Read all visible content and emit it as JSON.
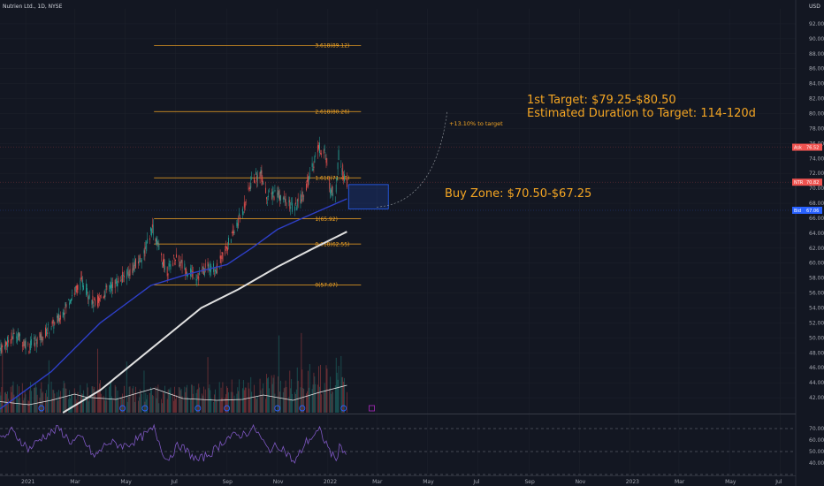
{
  "header": {
    "symbol": "Nutrien Ltd., 1D, NYSE",
    "currency": "USD"
  },
  "colors": {
    "bg": "#131722",
    "up": "#26a69a",
    "down": "#ef5350",
    "fib": "#f5a623",
    "ma_fast": "#2e3fc7",
    "ma_slow": "#e0e0e0",
    "ann": "#f5a623",
    "rsi": "#7e57c2"
  },
  "chart_data": {
    "type": "candlestick",
    "x_range": [
      "2020-12-01",
      "2023-07-20"
    ],
    "y_range": [
      40,
      94
    ],
    "y_ticks": [
      42,
      44,
      46,
      48,
      50,
      52,
      54,
      56,
      58,
      60,
      62,
      64,
      66,
      68,
      70,
      72,
      74,
      76,
      78,
      80,
      82,
      84,
      86,
      88,
      90,
      92
    ],
    "x_ticks": [
      {
        "date": "2021-01-01",
        "label": "2021"
      },
      {
        "date": "2021-03-01",
        "label": "Mar"
      },
      {
        "date": "2021-05-01",
        "label": "May"
      },
      {
        "date": "2021-07-01",
        "label": "Jul"
      },
      {
        "date": "2021-09-01",
        "label": "Sep"
      },
      {
        "date": "2021-11-01",
        "label": "Nov"
      },
      {
        "date": "2022-01-01",
        "label": "2022"
      },
      {
        "date": "2022-03-01",
        "label": "Mar"
      },
      {
        "date": "2022-05-01",
        "label": "May"
      },
      {
        "date": "2022-07-01",
        "label": "Jul"
      },
      {
        "date": "2022-09-01",
        "label": "Sep"
      },
      {
        "date": "2022-11-01",
        "label": "Nov"
      },
      {
        "date": "2023-01-01",
        "label": "2023"
      },
      {
        "date": "2023-03-01",
        "label": "Mar"
      },
      {
        "date": "2023-05-01",
        "label": "May"
      },
      {
        "date": "2023-07-01",
        "label": "Jul"
      }
    ],
    "price_path": [
      {
        "date": "2020-12-01",
        "close": 48.5
      },
      {
        "date": "2020-12-20",
        "close": 50.5
      },
      {
        "date": "2021-01-05",
        "close": 48.8
      },
      {
        "date": "2021-01-20",
        "close": 50.2
      },
      {
        "date": "2021-02-10",
        "close": 52.5
      },
      {
        "date": "2021-02-25",
        "close": 55.5
      },
      {
        "date": "2021-03-10",
        "close": 57.5
      },
      {
        "date": "2021-03-25",
        "close": 54.5
      },
      {
        "date": "2021-04-10",
        "close": 56.5
      },
      {
        "date": "2021-04-25",
        "close": 57.8
      },
      {
        "date": "2021-05-10",
        "close": 59.2
      },
      {
        "date": "2021-05-25",
        "close": 61.5
      },
      {
        "date": "2021-06-03",
        "close": 64.8
      },
      {
        "date": "2021-06-10",
        "close": 62.2
      },
      {
        "date": "2021-06-20",
        "close": 58.8
      },
      {
        "date": "2021-07-01",
        "close": 60.8
      },
      {
        "date": "2021-07-15",
        "close": 59.0
      },
      {
        "date": "2021-07-28",
        "close": 58.2
      },
      {
        "date": "2021-08-10",
        "close": 59.6
      },
      {
        "date": "2021-08-20",
        "close": 59.2
      },
      {
        "date": "2021-08-31",
        "close": 62.0
      },
      {
        "date": "2021-09-10",
        "close": 64.2
      },
      {
        "date": "2021-09-20",
        "close": 67.0
      },
      {
        "date": "2021-10-01",
        "close": 71.0
      },
      {
        "date": "2021-10-12",
        "close": 72.0
      },
      {
        "date": "2021-10-20",
        "close": 68.8
      },
      {
        "date": "2021-11-01",
        "close": 69.5
      },
      {
        "date": "2021-11-10",
        "close": 68.2
      },
      {
        "date": "2021-11-22",
        "close": 67.2
      },
      {
        "date": "2021-12-01",
        "close": 69.0
      },
      {
        "date": "2021-12-10",
        "close": 71.5
      },
      {
        "date": "2021-12-20",
        "close": 75.5
      },
      {
        "date": "2021-12-28",
        "close": 75.0
      },
      {
        "date": "2022-01-04",
        "close": 70.0
      },
      {
        "date": "2022-01-10",
        "close": 68.8
      },
      {
        "date": "2022-01-14",
        "close": 74.5
      },
      {
        "date": "2022-01-20",
        "close": 72.0
      },
      {
        "date": "2022-01-24",
        "close": 70.9
      }
    ],
    "volume_range": [
      0,
      2.6
    ],
    "volume_path": [
      {
        "date": "2021-01-01",
        "v": 0.55
      },
      {
        "date": "2021-04-01",
        "v": 0.55
      },
      {
        "date": "2021-07-01",
        "v": 0.45
      },
      {
        "date": "2021-10-01",
        "v": 0.6
      },
      {
        "date": "2022-01-24",
        "v": 1.0
      }
    ],
    "volume_avg": [
      {
        "date": "2020-12-01",
        "v": 0.25
      },
      {
        "date": "2021-01-05",
        "v": 0.18
      },
      {
        "date": "2021-02-01",
        "v": 0.28
      },
      {
        "date": "2021-03-01",
        "v": 0.42
      },
      {
        "date": "2021-03-15",
        "v": 0.35
      },
      {
        "date": "2021-04-20",
        "v": 0.3
      },
      {
        "date": "2021-06-05",
        "v": 0.55
      },
      {
        "date": "2021-07-10",
        "v": 0.32
      },
      {
        "date": "2021-08-20",
        "v": 0.28
      },
      {
        "date": "2021-09-20",
        "v": 0.3
      },
      {
        "date": "2021-10-15",
        "v": 0.4
      },
      {
        "date": "2021-11-20",
        "v": 0.28
      },
      {
        "date": "2021-12-20",
        "v": 0.45
      },
      {
        "date": "2022-01-24",
        "v": 0.62
      }
    ],
    "rsi_range": [
      30,
      80
    ],
    "rsi_ticks": [
      40,
      50,
      60,
      70
    ],
    "rsi_path": [
      {
        "date": "2020-12-01",
        "v": 60
      },
      {
        "date": "2020-12-15",
        "v": 68
      },
      {
        "date": "2021-01-05",
        "v": 52
      },
      {
        "date": "2021-01-20",
        "v": 62
      },
      {
        "date": "2021-02-10",
        "v": 70
      },
      {
        "date": "2021-02-25",
        "v": 58
      },
      {
        "date": "2021-03-10",
        "v": 62
      },
      {
        "date": "2021-03-25",
        "v": 45
      },
      {
        "date": "2021-04-10",
        "v": 58
      },
      {
        "date": "2021-05-01",
        "v": 55
      },
      {
        "date": "2021-05-20",
        "v": 62
      },
      {
        "date": "2021-06-05",
        "v": 70
      },
      {
        "date": "2021-06-20",
        "v": 42
      },
      {
        "date": "2021-07-05",
        "v": 56
      },
      {
        "date": "2021-07-28",
        "v": 42
      },
      {
        "date": "2021-08-15",
        "v": 50
      },
      {
        "date": "2021-09-01",
        "v": 62
      },
      {
        "date": "2021-09-20",
        "v": 65
      },
      {
        "date": "2021-10-05",
        "v": 70
      },
      {
        "date": "2021-10-20",
        "v": 52
      },
      {
        "date": "2021-11-05",
        "v": 55
      },
      {
        "date": "2021-11-22",
        "v": 40
      },
      {
        "date": "2021-12-05",
        "v": 58
      },
      {
        "date": "2021-12-22",
        "v": 68
      },
      {
        "date": "2022-01-04",
        "v": 50
      },
      {
        "date": "2022-01-10",
        "v": 42
      },
      {
        "date": "2022-01-16",
        "v": 56
      },
      {
        "date": "2022-01-24",
        "v": 47
      }
    ],
    "ma50": [
      {
        "date": "2020-12-01",
        "v": 40.5
      },
      {
        "date": "2021-02-01",
        "v": 45.5
      },
      {
        "date": "2021-04-01",
        "v": 52.0
      },
      {
        "date": "2021-06-01",
        "v": 57.0
      },
      {
        "date": "2021-07-15",
        "v": 58.5
      },
      {
        "date": "2021-09-01",
        "v": 59.8
      },
      {
        "date": "2021-10-01",
        "v": 62.0
      },
      {
        "date": "2021-11-01",
        "v": 64.5
      },
      {
        "date": "2021-12-01",
        "v": 66.0
      },
      {
        "date": "2022-01-24",
        "v": 68.6
      }
    ],
    "ma200": [
      {
        "date": "2021-02-15",
        "v": 40.0
      },
      {
        "date": "2021-04-01",
        "v": 43.0
      },
      {
        "date": "2021-06-01",
        "v": 48.5
      },
      {
        "date": "2021-08-01",
        "v": 54.0
      },
      {
        "date": "2021-09-15",
        "v": 56.5
      },
      {
        "date": "2021-11-01",
        "v": 59.5
      },
      {
        "date": "2021-12-15",
        "v": 62.0
      },
      {
        "date": "2022-01-24",
        "v": 64.2
      }
    ],
    "fib_levels": [
      {
        "label": "3.618(89.12)",
        "value": 89.12,
        "start": "2021-06-05"
      },
      {
        "label": "2.618(80.26)",
        "value": 80.26,
        "start": "2021-06-05"
      },
      {
        "label": "1.618(71.40)",
        "value": 71.4,
        "start": "2021-06-05"
      },
      {
        "label": "1(65.92)",
        "value": 65.92,
        "start": "2021-06-05"
      },
      {
        "label": "0.618(62.55)",
        "value": 62.55,
        "start": "2021-06-05"
      },
      {
        "label": "0(57.07)",
        "value": 57.07,
        "start": "2021-06-05"
      }
    ],
    "fib_end": "2022-02-10",
    "buy_zone": {
      "from": "2022-01-26",
      "to": "2022-03-15",
      "low": 67.25,
      "high": 70.5
    },
    "annotations": {
      "target": "1st Target: $79.25-$80.50",
      "duration": "Estimated Duration to Target: 114-120d",
      "buy": "Buy Zone: $70.50-$67.25",
      "pct": "+13.10% to target"
    },
    "price_tags": [
      {
        "label": "Ask",
        "value": "76.52",
        "y": 75.5,
        "color": "#ef5350"
      },
      {
        "label": "NTR",
        "value": "70.82",
        "y": 70.82,
        "color": "#ef5350"
      },
      {
        "label": "Bid",
        "value": "67.06",
        "y": 67.06,
        "color": "#2962ff"
      }
    ]
  }
}
